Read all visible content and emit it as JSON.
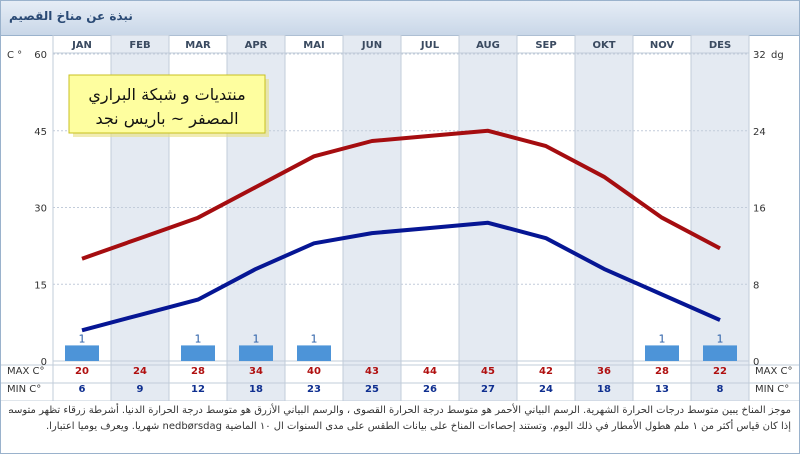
{
  "header": {
    "title": "نبذة عن مناخ القصيم"
  },
  "colors": {
    "max_line": "#a50d10",
    "min_line": "#061694",
    "rain_bar": "#4d94d8",
    "col_shade": "#e4eaf2",
    "grid": "#c2ccda",
    "note_bg": "#fefe9f",
    "note_border": "#c8c020",
    "max_text": "#b01010",
    "min_text": "#0f2f90"
  },
  "chart_data": {
    "type": "line",
    "categories": [
      "JAN",
      "FEB",
      "MAR",
      "APR",
      "MAI",
      "JUN",
      "JUL",
      "AUG",
      "SEP",
      "OKT",
      "NOV",
      "DES"
    ],
    "series": [
      {
        "name": "MAX C°",
        "values": [
          20,
          24,
          28,
          34,
          40,
          43,
          44,
          45,
          42,
          36,
          28,
          22
        ]
      },
      {
        "name": "MIN C°",
        "values": [
          6,
          9,
          12,
          18,
          23,
          25,
          26,
          27,
          24,
          18,
          13,
          8
        ]
      }
    ],
    "rain_days": [
      1,
      null,
      1,
      1,
      1,
      null,
      null,
      null,
      null,
      null,
      1,
      1
    ],
    "left_axis": {
      "label": "C °",
      "ticks": [
        0,
        15,
        30,
        45,
        60
      ],
      "ylim": [
        0,
        60
      ]
    },
    "right_axis": {
      "label": "dg",
      "ticks": [
        0,
        8,
        16,
        24,
        32
      ],
      "ylim": [
        0,
        32
      ]
    },
    "row_labels": {
      "max": "MAX C°",
      "min": "MIN C°"
    },
    "annotation": {
      "line1": "منتديات و شبكة البراري",
      "line2": "المصفر ~ باريس نجد"
    }
  },
  "note": {
    "line1": "موجز المناخ يبين متوسط درجات الحرارة الشهرية. الرسم البياني الأحمر هو متوسط درجة الحرارة القصوى ، والرسم البياني الأزرق هو متوسط درجة الحرارة الدنيا. أشرطة زرقاء تظهر متوسط عدد أيام التساقط",
    "line2": "إذا كان قياس أكثر من ١ ملم هطول الأمطار في ذلك اليوم. وتستند إحصاءات المناخ على بيانات الطقس على مدى السنوات ال ١٠ الماضية nedbørsdag شهريا. ويعرف يوميا اعتبارا."
  }
}
